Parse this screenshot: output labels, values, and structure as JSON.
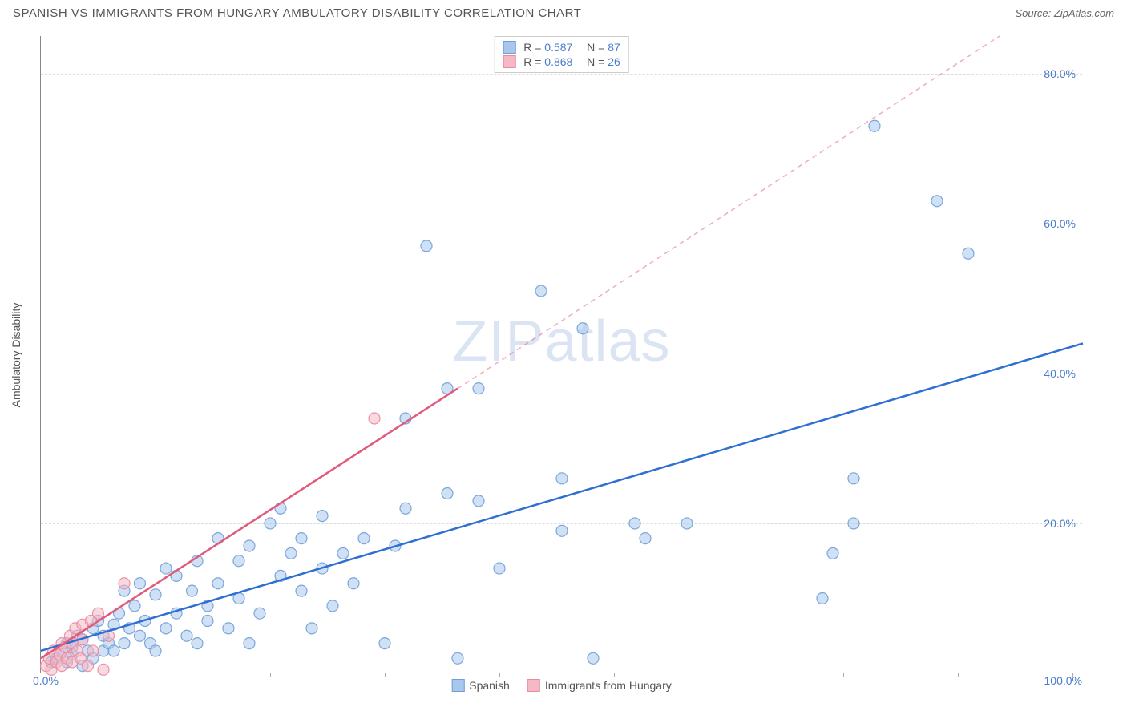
{
  "header": {
    "title": "SPANISH VS IMMIGRANTS FROM HUNGARY AMBULATORY DISABILITY CORRELATION CHART",
    "source_prefix": "Source: ",
    "source_name": "ZipAtlas.com"
  },
  "chart": {
    "type": "scatter",
    "y_axis_title": "Ambulatory Disability",
    "xlim": [
      0,
      100
    ],
    "ylim": [
      0,
      85
    ],
    "x_start_label": "0.0%",
    "x_end_label": "100.0%",
    "y_ticks": [
      {
        "v": 20,
        "label": "20.0%"
      },
      {
        "v": 40,
        "label": "40.0%"
      },
      {
        "v": 60,
        "label": "60.0%"
      },
      {
        "v": 80,
        "label": "80.0%"
      }
    ],
    "x_tick_positions": [
      11,
      22,
      33,
      44,
      55,
      66,
      77,
      88,
      99
    ],
    "background_color": "#ffffff",
    "grid_color": "#dddddd",
    "marker_radius": 7,
    "watermark": "ZIPatlas",
    "series": [
      {
        "name": "Spanish",
        "color_fill": "#a9c6ed",
        "color_stroke": "#6f9fd8",
        "trend_color": "#2e6fd1",
        "r": "0.587",
        "n": "87",
        "trend": {
          "x1": 0,
          "y1": 3,
          "x2": 100,
          "y2": 44
        },
        "points": [
          [
            1,
            1.5
          ],
          [
            1.5,
            2
          ],
          [
            2,
            3
          ],
          [
            2.5,
            1.5
          ],
          [
            2.5,
            4
          ],
          [
            3,
            2.5
          ],
          [
            3,
            3.5
          ],
          [
            3.5,
            5
          ],
          [
            4,
            1
          ],
          [
            4,
            4.5
          ],
          [
            4.5,
            3
          ],
          [
            5,
            2
          ],
          [
            5,
            6
          ],
          [
            5.5,
            7
          ],
          [
            6,
            3
          ],
          [
            6,
            5
          ],
          [
            6.5,
            4
          ],
          [
            7,
            6.5
          ],
          [
            7,
            3
          ],
          [
            7.5,
            8
          ],
          [
            8,
            4
          ],
          [
            8,
            11
          ],
          [
            8.5,
            6
          ],
          [
            9,
            9
          ],
          [
            9.5,
            5
          ],
          [
            9.5,
            12
          ],
          [
            10,
            7
          ],
          [
            10.5,
            4
          ],
          [
            11,
            10.5
          ],
          [
            11,
            3
          ],
          [
            12,
            6
          ],
          [
            12,
            14
          ],
          [
            13,
            8
          ],
          [
            13,
            13
          ],
          [
            14,
            5
          ],
          [
            14.5,
            11
          ],
          [
            15,
            4
          ],
          [
            15,
            15
          ],
          [
            16,
            9
          ],
          [
            16,
            7
          ],
          [
            17,
            12
          ],
          [
            17,
            18
          ],
          [
            18,
            6
          ],
          [
            19,
            10
          ],
          [
            19,
            15
          ],
          [
            20,
            4
          ],
          [
            20,
            17
          ],
          [
            21,
            8
          ],
          [
            22,
            20
          ],
          [
            23,
            13
          ],
          [
            23,
            22
          ],
          [
            24,
            16
          ],
          [
            25,
            11
          ],
          [
            25,
            18
          ],
          [
            26,
            6
          ],
          [
            27,
            14
          ],
          [
            27,
            21
          ],
          [
            28,
            9
          ],
          [
            29,
            16
          ],
          [
            30,
            12
          ],
          [
            31,
            18
          ],
          [
            33,
            4
          ],
          [
            34,
            17
          ],
          [
            35,
            22
          ],
          [
            35,
            34
          ],
          [
            37,
            57
          ],
          [
            39,
            38
          ],
          [
            39,
            24
          ],
          [
            40,
            2
          ],
          [
            42,
            38
          ],
          [
            42,
            23
          ],
          [
            44,
            14
          ],
          [
            48,
            51
          ],
          [
            50,
            19
          ],
          [
            50,
            26
          ],
          [
            52,
            46
          ],
          [
            53,
            2
          ],
          [
            57,
            20
          ],
          [
            58,
            18
          ],
          [
            62,
            20
          ],
          [
            75,
            10
          ],
          [
            76,
            16
          ],
          [
            78,
            20
          ],
          [
            78,
            26
          ],
          [
            80,
            73
          ],
          [
            86,
            63
          ],
          [
            89,
            56
          ]
        ]
      },
      {
        "name": "Immigrants from Hungary",
        "color_fill": "#f5b8c5",
        "color_stroke": "#e88aa0",
        "trend_color": "#e05a7c",
        "r": "0.868",
        "n": "26",
        "trend": {
          "x1": 0,
          "y1": 2,
          "x2": 40,
          "y2": 38
        },
        "trend_extend": {
          "x1": 40,
          "y1": 38,
          "x2": 92,
          "y2": 85
        },
        "points": [
          [
            0.5,
            1
          ],
          [
            0.8,
            2
          ],
          [
            1,
            0.5
          ],
          [
            1.2,
            3
          ],
          [
            1.5,
            1.5
          ],
          [
            1.8,
            2.5
          ],
          [
            2,
            4
          ],
          [
            2,
            1
          ],
          [
            2.3,
            3.5
          ],
          [
            2.5,
            2
          ],
          [
            2.8,
            5
          ],
          [
            3,
            1.5
          ],
          [
            3,
            4
          ],
          [
            3.3,
            6
          ],
          [
            3.5,
            3
          ],
          [
            3.8,
            2
          ],
          [
            4,
            6.5
          ],
          [
            4,
            4.5
          ],
          [
            4.5,
            1
          ],
          [
            4.8,
            7
          ],
          [
            5,
            3
          ],
          [
            5.5,
            8
          ],
          [
            6,
            0.5
          ],
          [
            6.5,
            5
          ],
          [
            8,
            12
          ],
          [
            32,
            34
          ]
        ]
      }
    ]
  }
}
